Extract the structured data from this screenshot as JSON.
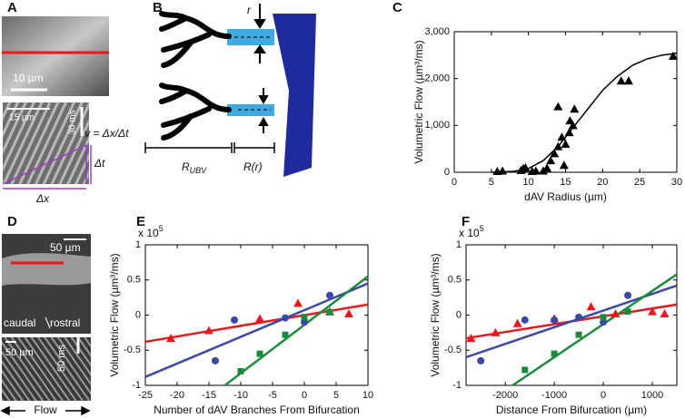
{
  "figure": {
    "panel_labels": [
      "A",
      "B",
      "C",
      "D",
      "E",
      "F"
    ],
    "panel_a": {
      "scale": "10 µm",
      "kymo_scale": "15 µm",
      "time_scale": "30 ms",
      "equation": "v = Δx/Δt",
      "dt": "Δt",
      "dx": "Δx"
    },
    "panel_b": {
      "r": "r",
      "r_ubv": {
        "base": "R",
        "sub": "UBV"
      },
      "r_r": "R(r)"
    },
    "panel_d": {
      "scale_top": "50 µm",
      "caudal": "caudal",
      "rostral": "rostral",
      "scale_bottom": "50 µm",
      "time_scale": "50 ms",
      "flow": "Flow"
    }
  },
  "chart_data": [
    {
      "type": "scatter",
      "xlabel": "dAV Radius (µm)",
      "ylabel": "Volumetric Flow (µm³/ms)",
      "xlim": [
        0,
        30
      ],
      "xticks": [
        0,
        5,
        10,
        15,
        20,
        25,
        30
      ],
      "ylim": [
        0,
        3000
      ],
      "yticks": [
        0,
        {
          "value": 1000,
          "label": "1,000"
        },
        {
          "value": 2000,
          "label": "2,000"
        },
        {
          "value": 3000,
          "label": "3,000"
        }
      ],
      "series": [
        {
          "marker": "triangle",
          "color": "#000000",
          "x": [
            5.8,
            6.5,
            9.0,
            9.3,
            9.6,
            10.5,
            11.0,
            12.0,
            12.5,
            13.0,
            13.5,
            14.0,
            14.5,
            14.8,
            15.0,
            15.5,
            16.0,
            14.0,
            15.6,
            16.2,
            22.5,
            23.5,
            29.5
          ],
          "values": [
            20,
            30,
            40,
            80,
            100,
            20,
            30,
            30,
            90,
            250,
            400,
            550,
            750,
            150,
            600,
            850,
            1000,
            1400,
            1100,
            1350,
            1950,
            1950,
            2480
          ]
        }
      ],
      "fits": [
        {
          "color": "#000000",
          "x": [
            5,
            8,
            10,
            12,
            14,
            16,
            18,
            20,
            22,
            24,
            26,
            28,
            30
          ],
          "values": [
            0,
            20,
            80,
            250,
            550,
            950,
            1350,
            1750,
            2050,
            2280,
            2420,
            2500,
            2540
          ]
        }
      ]
    },
    {
      "type": "scatter",
      "xlabel": "Number of dAV Branches From Bifurcation",
      "ylabel": "Volumetric Flow (µm³/ms)",
      "y_multiplier": {
        "base": "x 10",
        "exponent": "5"
      },
      "xlim": [
        -25,
        10
      ],
      "xticks": [
        -25,
        -20,
        -15,
        -10,
        -5,
        0,
        5,
        10
      ],
      "ylim": [
        -1,
        1
      ],
      "yticks": [
        -1,
        -0.5,
        0,
        0.5,
        1
      ],
      "series": [
        {
          "marker": "triangle",
          "color": "#e8191c",
          "x": [
            -21,
            -15,
            -7,
            -1,
            4,
            7
          ],
          "values": [
            -0.33,
            -0.22,
            -0.05,
            0.17,
            0.05,
            0.02
          ]
        },
        {
          "marker": "circle",
          "color": "#3b48a8",
          "x": [
            -14,
            -11,
            -3,
            0,
            4
          ],
          "values": [
            -0.65,
            -0.07,
            -0.04,
            -0.1,
            0.28
          ]
        },
        {
          "marker": "square",
          "color": "#1c8a3c",
          "x": [
            -10,
            -7,
            -3,
            0,
            4
          ],
          "values": [
            -0.8,
            -0.55,
            -0.28,
            -0.03,
            0.04
          ]
        }
      ],
      "fits": [
        {
          "color": "#e8191c",
          "x": [
            -25,
            10
          ],
          "values": [
            -0.38,
            0.15
          ]
        },
        {
          "color": "#3b48a8",
          "x": [
            -25,
            10
          ],
          "values": [
            -0.88,
            0.45
          ]
        },
        {
          "color": "#1c8a3c",
          "x": [
            -12.5,
            10
          ],
          "values": [
            -1,
            0.55
          ]
        }
      ]
    },
    {
      "type": "scatter",
      "xlabel": "Distance From Bifurcation (µm)",
      "ylabel": "Volumetric Flow (µm³/ms)",
      "y_multiplier": {
        "base": "x 10",
        "exponent": "5"
      },
      "xlim": [
        -2800,
        1500
      ],
      "xticks": [
        -2000,
        -1000,
        0,
        1000
      ],
      "ylim": [
        -1,
        1
      ],
      "yticks": [
        -1,
        -0.5,
        0,
        0.5,
        1
      ],
      "series": [
        {
          "marker": "triangle",
          "color": "#e8191c",
          "x": [
            -2700,
            -2200,
            -1750,
            -1000,
            -250,
            250,
            1000,
            1250
          ],
          "values": [
            -0.33,
            -0.25,
            -0.12,
            -0.05,
            0.12,
            0.02,
            0.05,
            0.02
          ]
        },
        {
          "marker": "circle",
          "color": "#3b48a8",
          "x": [
            -2500,
            -1600,
            -1000,
            -500,
            0,
            500
          ],
          "values": [
            -0.65,
            -0.07,
            -0.07,
            -0.03,
            -0.1,
            0.28
          ]
        },
        {
          "marker": "square",
          "color": "#1c8a3c",
          "x": [
            -1600,
            -1000,
            -500,
            0,
            500
          ],
          "values": [
            -0.78,
            -0.55,
            -0.28,
            -0.03,
            0.05
          ]
        }
      ],
      "fits": [
        {
          "color": "#e8191c",
          "x": [
            -2800,
            1500
          ],
          "values": [
            -0.33,
            0.15
          ]
        },
        {
          "color": "#3b48a8",
          "x": [
            -2800,
            1500
          ],
          "values": [
            -0.6,
            0.42
          ]
        },
        {
          "color": "#1c8a3c",
          "x": [
            -1850,
            1500
          ],
          "values": [
            -1,
            0.58
          ]
        }
      ]
    }
  ]
}
